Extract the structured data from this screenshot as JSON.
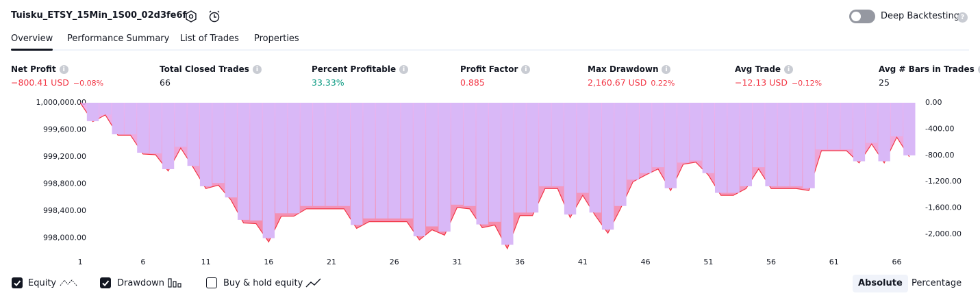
{
  "header": {
    "title": "Tuisku_ETSY_15Min_1S00_02d3fe6f",
    "deep_backtesting": {
      "label": "Deep Backtesting",
      "on": false
    }
  },
  "tabs": {
    "items": [
      "Overview",
      "Performance Summary",
      "List of Trades",
      "Properties"
    ],
    "active": "Overview"
  },
  "metrics": [
    {
      "label": "Net Profit",
      "value": "−800.41 USD",
      "percent": "−0.08%",
      "tone": "negative"
    },
    {
      "label": "Total Closed Trades",
      "value": "66",
      "tone": "neutral"
    },
    {
      "label": "Percent Profitable",
      "value": "33.33%",
      "tone": "positive"
    },
    {
      "label": "Profit Factor",
      "value": "0.885",
      "tone": "negative"
    },
    {
      "label": "Max Drawdown",
      "value": "2,160.67 USD",
      "percent": "0.22%",
      "tone": "negative"
    },
    {
      "label": "Avg Trade",
      "value": "−12.13 USD",
      "percent": "−0.12%",
      "tone": "negative"
    },
    {
      "label": "Avg # Bars in Trades",
      "value": "25",
      "tone": "neutral"
    }
  ],
  "chart_data": {
    "type": "line",
    "x": [
      1,
      2,
      3,
      4,
      5,
      6,
      7,
      8,
      9,
      10,
      11,
      12,
      13,
      14,
      15,
      16,
      17,
      18,
      19,
      20,
      21,
      22,
      23,
      24,
      25,
      26,
      27,
      28,
      29,
      30,
      31,
      32,
      33,
      34,
      35,
      36,
      37,
      38,
      39,
      40,
      41,
      42,
      43,
      44,
      45,
      46,
      47,
      48,
      49,
      50,
      51,
      52,
      53,
      54,
      55,
      56,
      57,
      58,
      59,
      60,
      61,
      62,
      63,
      64,
      65,
      66,
      67
    ],
    "series": [
      {
        "name": "Equity",
        "color": "#f23645",
        "axis": "y",
        "visible": true,
        "values": [
          1000000,
          999720,
          999820,
          999520,
          999520,
          999240,
          999230,
          998990,
          999330,
          999040,
          998730,
          998780,
          998560,
          998220,
          998210,
          997940,
          998320,
          998320,
          998430,
          998430,
          998430,
          998430,
          998140,
          998240,
          998240,
          998240,
          998240,
          997970,
          998120,
          998040,
          998450,
          998430,
          998150,
          998190,
          997840,
          998330,
          998330,
          998730,
          998730,
          998300,
          998630,
          998330,
          998070,
          998430,
          998830,
          998930,
          999020,
          998700,
          999090,
          999120,
          998930,
          998630,
          998630,
          998730,
          999020,
          998730,
          998730,
          998730,
          998700,
          999290,
          999290,
          999290,
          999110,
          999390,
          999110,
          999490,
          999200
        ]
      },
      {
        "name": "Drawdown",
        "color": "#d9b8f7",
        "axis": "y2",
        "visible": true,
        "values": [
          0,
          -280,
          -180,
          -480,
          -480,
          -760,
          -770,
          -1010,
          -670,
          -960,
          -1270,
          -1220,
          -1440,
          -1780,
          -1790,
          -2060,
          -1680,
          -1680,
          -1570,
          -1570,
          -1570,
          -1570,
          -1860,
          -1760,
          -1760,
          -1760,
          -1760,
          -2030,
          -1880,
          -1960,
          -1550,
          -1570,
          -1850,
          -1810,
          -2160,
          -1670,
          -1670,
          -1270,
          -1270,
          -1700,
          -1370,
          -1670,
          -1930,
          -1570,
          -1170,
          -1070,
          -980,
          -1300,
          -910,
          -880,
          -1070,
          -1370,
          -1370,
          -1270,
          -980,
          -1270,
          -1270,
          -1270,
          -1300,
          -710,
          -710,
          -710,
          -890,
          -610,
          -890,
          -510,
          -800
        ]
      }
    ],
    "buy_and_hold": {
      "name": "Buy & hold equity",
      "visible": false
    },
    "xlim": [
      0.5,
      67.5
    ],
    "xticks": [
      1,
      6,
      11,
      16,
      21,
      26,
      31,
      36,
      41,
      46,
      51,
      56,
      61,
      66
    ],
    "ylim": [
      997800,
      1000000
    ],
    "yticks": [
      {
        "value": 1000000,
        "label": "1,000,000.00"
      },
      {
        "value": 999600,
        "label": "999,600.00"
      },
      {
        "value": 999200,
        "label": "999,200.00"
      },
      {
        "value": 998800,
        "label": "998,800.00"
      },
      {
        "value": 998400,
        "label": "998,400.00"
      },
      {
        "value": 998000,
        "label": "998,000.00"
      }
    ],
    "y2lim": [
      -2260,
      0
    ],
    "y2ticks": [
      {
        "value": 0,
        "label": "0.00"
      },
      {
        "value": -400,
        "label": "-400.00"
      },
      {
        "value": -800,
        "label": "-800.00"
      },
      {
        "value": -1200,
        "label": "-1,200.00"
      },
      {
        "value": -1600,
        "label": "-1,600.00"
      },
      {
        "value": -2000,
        "label": "-2,000.00"
      }
    ],
    "grid": false,
    "scale_modes": [
      "Absolute",
      "Percentage"
    ],
    "active_scale": "Absolute"
  }
}
